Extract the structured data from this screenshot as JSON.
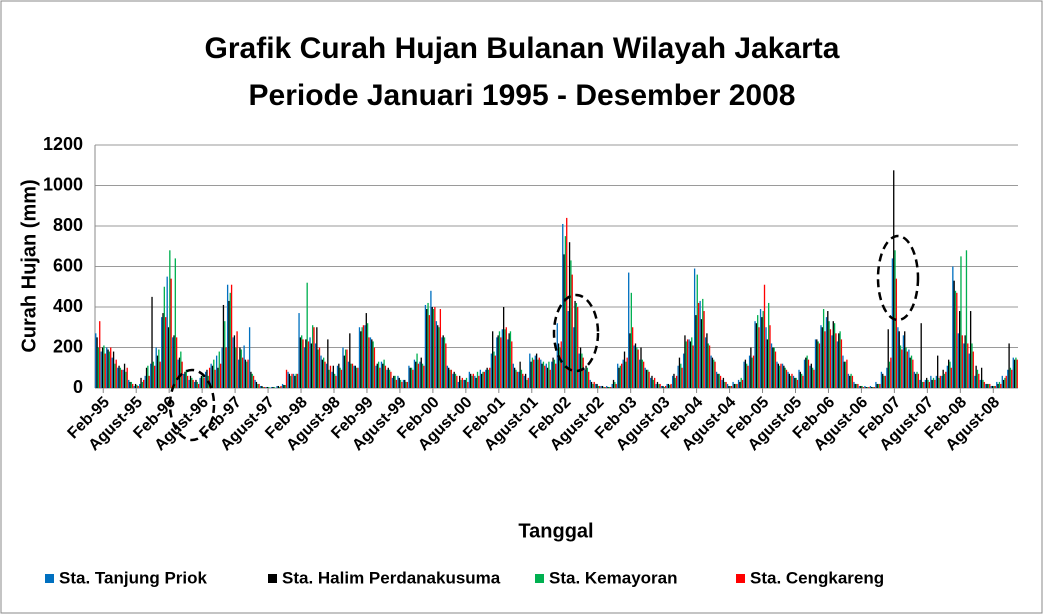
{
  "chart_data": {
    "type": "bar",
    "title": "Grafik Curah Hujan Bulanan Wilayah Jakarta",
    "subtitle": "Periode  Januari 1995 - Desember 2008",
    "x_label": "Tanggal",
    "y_label": "Curah Hujan (mm)",
    "categories": [
      null,
      "Feb-95",
      null,
      null,
      null,
      null,
      null,
      "Agust-95",
      null,
      null,
      null,
      null,
      null,
      "Feb-96",
      null,
      null,
      null,
      null,
      null,
      "Agust-96",
      null,
      null,
      null,
      null,
      null,
      "Feb-97",
      null,
      null,
      null,
      null,
      null,
      "Agust-97",
      null,
      null,
      null,
      null,
      null,
      "Feb-98",
      null,
      null,
      null,
      null,
      null,
      "Agust-98",
      null,
      null,
      null,
      null,
      null,
      "Feb-99",
      null,
      null,
      null,
      null,
      null,
      "Agust-99",
      null,
      null,
      null,
      null,
      null,
      "Feb-00",
      null,
      null,
      null,
      null,
      null,
      "Agust-00",
      null,
      null,
      null,
      null,
      null,
      "Feb-01",
      null,
      null,
      null,
      null,
      null,
      "Agust-01",
      null,
      null,
      null,
      null,
      null,
      "Feb-02",
      null,
      null,
      null,
      null,
      null,
      "Agust-02",
      null,
      null,
      null,
      null,
      null,
      "Feb-03",
      null,
      null,
      null,
      null,
      null,
      "Agust-03",
      null,
      null,
      null,
      null,
      null,
      "Feb-04",
      null,
      null,
      null,
      null,
      null,
      "Agust-04",
      null,
      null,
      null,
      null,
      null,
      "Feb-05",
      null,
      null,
      null,
      null,
      null,
      "Agust-05",
      null,
      null,
      null,
      null,
      null,
      "Feb-06",
      null,
      null,
      null,
      null,
      null,
      "Agust-06",
      null,
      null,
      null,
      null,
      null,
      "Feb-07",
      null,
      null,
      null,
      null,
      null,
      "Agust-07",
      null,
      null,
      null,
      null,
      null,
      "Feb-08",
      null,
      null,
      null,
      null,
      null,
      "Agust-08",
      null,
      null,
      null,
      null
    ],
    "series": [
      {
        "name": "Sta. Tanjung Priok",
        "color": "#0070c0",
        "values": [
          270,
          180,
          200,
          150,
          100,
          90,
          40,
          10,
          20,
          60,
          120,
          200,
          350,
          550,
          250,
          140,
          70,
          40,
          30,
          50,
          80,
          120,
          160,
          200,
          510,
          250,
          140,
          210,
          300,
          40,
          10,
          5,
          5,
          10,
          20,
          80,
          70,
          370,
          200,
          250,
          220,
          160,
          120,
          80,
          110,
          200,
          130,
          110,
          300,
          310,
          250,
          110,
          130,
          90,
          50,
          60,
          40,
          110,
          140,
          130,
          410,
          480,
          330,
          250,
          110,
          70,
          30,
          40,
          80,
          60,
          90,
          90,
          170,
          250,
          290,
          240,
          120,
          80,
          60,
          170,
          160,
          140,
          120,
          130,
          320,
          810,
          380,
          300,
          170,
          90,
          40,
          20,
          10,
          10,
          20,
          120,
          140,
          570,
          210,
          140,
          100,
          50,
          20,
          10,
          20,
          60,
          110,
          170,
          240,
          590,
          430,
          250,
          160,
          80,
          40,
          20,
          30,
          40,
          130,
          160,
          330,
          390,
          300,
          220,
          130,
          120,
          80,
          60,
          90,
          140,
          110,
          240,
          310,
          350,
          260,
          230,
          160,
          70,
          30,
          10,
          10,
          10,
          30,
          80,
          100,
          640,
          300,
          260,
          190,
          80,
          40,
          40,
          60,
          60,
          60,
          110,
          600,
          270,
          220,
          170,
          60,
          40,
          20,
          10,
          30,
          60,
          90,
          150
        ]
      },
      {
        "name": "Sta. Halim Perdanakusuma",
        "color": "#000000",
        "values": [
          250,
          200,
          190,
          180,
          110,
          120,
          30,
          20,
          50,
          100,
          450,
          160,
          370,
          300,
          260,
          150,
          80,
          60,
          40,
          60,
          90,
          110,
          100,
          410,
          430,
          260,
          200,
          140,
          80,
          30,
          10,
          5,
          5,
          10,
          15,
          70,
          60,
          250,
          240,
          220,
          300,
          140,
          240,
          110,
          120,
          160,
          270,
          110,
          280,
          370,
          240,
          120,
          120,
          100,
          60,
          50,
          40,
          100,
          130,
          150,
          390,
          400,
          310,
          260,
          100,
          80,
          60,
          40,
          70,
          50,
          70,
          100,
          280,
          260,
          400,
          270,
          100,
          130,
          70,
          130,
          170,
          120,
          100,
          150,
          220,
          660,
          720,
          430,
          200,
          110,
          30,
          20,
          10,
          5,
          40,
          100,
          180,
          270,
          220,
          200,
          90,
          60,
          30,
          10,
          20,
          70,
          150,
          260,
          230,
          360,
          340,
          270,
          150,
          70,
          50,
          10,
          20,
          30,
          140,
          200,
          320,
          350,
          240,
          200,
          120,
          110,
          70,
          50,
          80,
          150,
          120,
          240,
          300,
          380,
          330,
          270,
          130,
          60,
          20,
          10,
          5,
          5,
          20,
          70,
          290,
          1075,
          280,
          280,
          150,
          70,
          320,
          50,
          40,
          160,
          90,
          140,
          530,
          380,
          260,
          380,
          110,
          100,
          20,
          10,
          20,
          40,
          220,
          140
        ]
      },
      {
        "name": "Sta. Kemayoran",
        "color": "#00b050",
        "values": [
          200,
          210,
          180,
          120,
          100,
          80,
          30,
          15,
          30,
          110,
          130,
          190,
          500,
          680,
          640,
          180,
          90,
          50,
          30,
          70,
          60,
          140,
          180,
          330,
          470,
          200,
          190,
          130,
          70,
          20,
          5,
          5,
          5,
          5,
          15,
          60,
          70,
          260,
          520,
          310,
          190,
          150,
          90,
          70,
          100,
          190,
          120,
          100,
          300,
          320,
          230,
          130,
          140,
          90,
          60,
          40,
          30,
          100,
          170,
          120,
          420,
          390,
          300,
          250,
          90,
          70,
          40,
          50,
          60,
          80,
          80,
          90,
          180,
          280,
          290,
          280,
          90,
          90,
          40,
          150,
          140,
          130,
          130,
          140,
          200,
          750,
          630,
          420,
          170,
          100,
          20,
          10,
          5,
          5,
          30,
          110,
          130,
          470,
          200,
          140,
          90,
          40,
          20,
          5,
          15,
          50,
          120,
          230,
          250,
          560,
          440,
          220,
          140,
          70,
          30,
          10,
          20,
          50,
          120,
          150,
          360,
          380,
          420,
          200,
          110,
          100,
          60,
          50,
          70,
          160,
          100,
          230,
          390,
          330,
          320,
          280,
          130,
          70,
          20,
          10,
          5,
          5,
          20,
          60,
          130,
          680,
          210,
          200,
          160,
          80,
          30,
          40,
          50,
          50,
          70,
          130,
          480,
          650,
          680,
          220,
          90,
          40,
          20,
          10,
          30,
          50,
          100,
          150
        ]
      },
      {
        "name": "Sta. Cengkareng",
        "color": "#ff0000",
        "values": [
          330,
          170,
          200,
          140,
          90,
          100,
          20,
          10,
          40,
          60,
          110,
          130,
          350,
          540,
          250,
          130,
          60,
          40,
          20,
          50,
          100,
          90,
          120,
          200,
          510,
          280,
          150,
          140,
          60,
          20,
          5,
          0,
          0,
          10,
          90,
          70,
          70,
          240,
          230,
          300,
          200,
          130,
          110,
          60,
          90,
          190,
          120,
          100,
          310,
          250,
          200,
          100,
          110,
          80,
          40,
          30,
          30,
          90,
          120,
          110,
          360,
          400,
          390,
          220,
          90,
          60,
          50,
          30,
          70,
          60,
          80,
          100,
          160,
          250,
          300,
          230,
          80,
          70,
          50,
          140,
          150,
          110,
          90,
          120,
          230,
          840,
          560,
          400,
          150,
          80,
          30,
          10,
          5,
          5,
          20,
          120,
          150,
          300,
          190,
          130,
          80,
          50,
          20,
          10,
          20,
          60,
          100,
          240,
          210,
          420,
          380,
          210,
          130,
          60,
          30,
          10,
          20,
          40,
          110,
          160,
          300,
          510,
          310,
          180,
          120,
          90,
          70,
          40,
          60,
          140,
          90,
          220,
          280,
          290,
          270,
          240,
          140,
          60,
          20,
          5,
          5,
          5,
          20,
          60,
          150,
          540,
          190,
          180,
          140,
          70,
          30,
          30,
          40,
          60,
          80,
          100,
          470,
          260,
          220,
          180,
          70,
          30,
          20,
          10,
          20,
          60,
          90,
          140
        ]
      }
    ],
    "ylim": [
      0,
      1200
    ],
    "yticks": [
      0,
      200,
      400,
      600,
      800,
      1000,
      1200
    ],
    "grid": true,
    "legend": "bottom"
  }
}
